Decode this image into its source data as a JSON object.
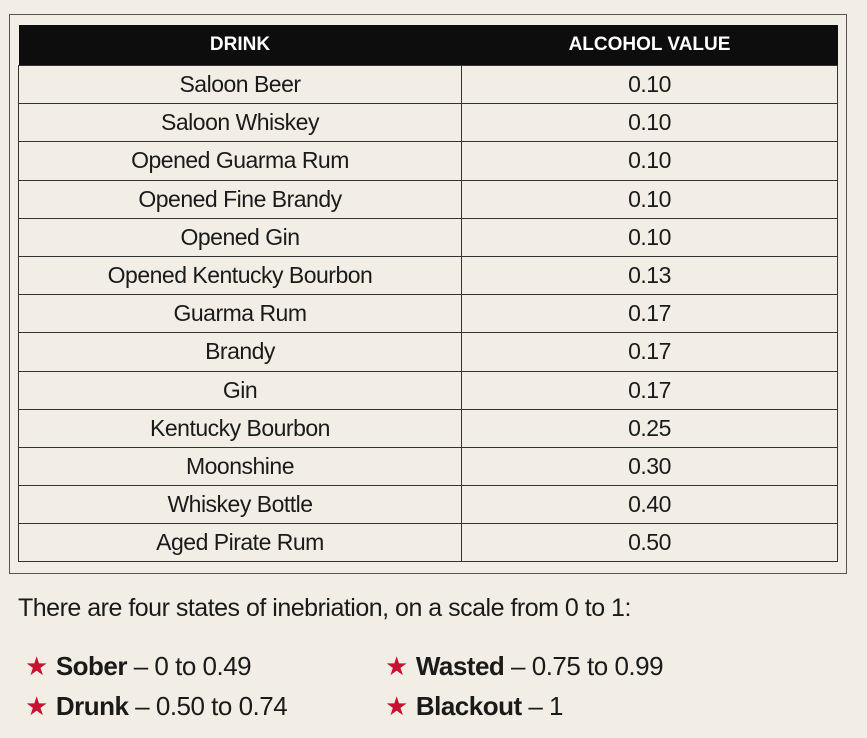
{
  "table": {
    "header": [
      "DRINK",
      "ALCOHOL VALUE"
    ],
    "rows": [
      [
        "Saloon Beer",
        "0.10"
      ],
      [
        "Saloon Whiskey",
        "0.10"
      ],
      [
        "Opened Guarma Rum",
        "0.10"
      ],
      [
        "Opened Fine Brandy",
        "0.10"
      ],
      [
        "Opened Gin",
        "0.10"
      ],
      [
        "Opened Kentucky Bourbon",
        "0.13"
      ],
      [
        "Guarma Rum",
        "0.17"
      ],
      [
        "Brandy",
        "0.17"
      ],
      [
        "Gin",
        "0.17"
      ],
      [
        "Kentucky Bourbon",
        "0.25"
      ],
      [
        "Moonshine",
        "0.30"
      ],
      [
        "Whiskey Bottle",
        "0.40"
      ],
      [
        "Aged Pirate Rum",
        "0.50"
      ]
    ]
  },
  "intro": "There are four states of inebriation, on a scale from 0 to 1:",
  "states": [
    {
      "name": "Sober",
      "range": "– 0 to 0.49"
    },
    {
      "name": "Wasted",
      "range": "– 0.75 to 0.99"
    },
    {
      "name": "Drunk",
      "range": "– 0.50 to 0.74"
    },
    {
      "name": "Blackout",
      "range": "– 1"
    }
  ]
}
